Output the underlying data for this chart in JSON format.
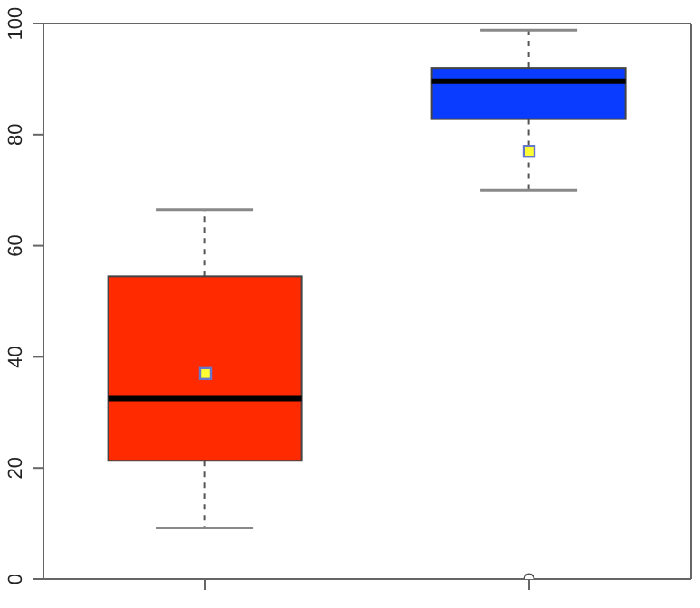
{
  "chart_data": {
    "type": "box",
    "categories": [
      null,
      null
    ],
    "colors": [
      "#ff2a00",
      "#0a3cff"
    ],
    "boxes": [
      {
        "low": 9.2,
        "q1": 21.3,
        "median": 32.5,
        "q3": 54.5,
        "high": 66.5,
        "mean": 37
      },
      {
        "low": 70,
        "q1": 82.8,
        "median": 89.6,
        "q3": 92,
        "high": 98.8,
        "mean": 77,
        "outliers": [
          0
        ]
      }
    ],
    "ylim": [
      0,
      100
    ],
    "yticks": [
      0,
      20,
      40,
      60,
      80,
      100
    ]
  }
}
